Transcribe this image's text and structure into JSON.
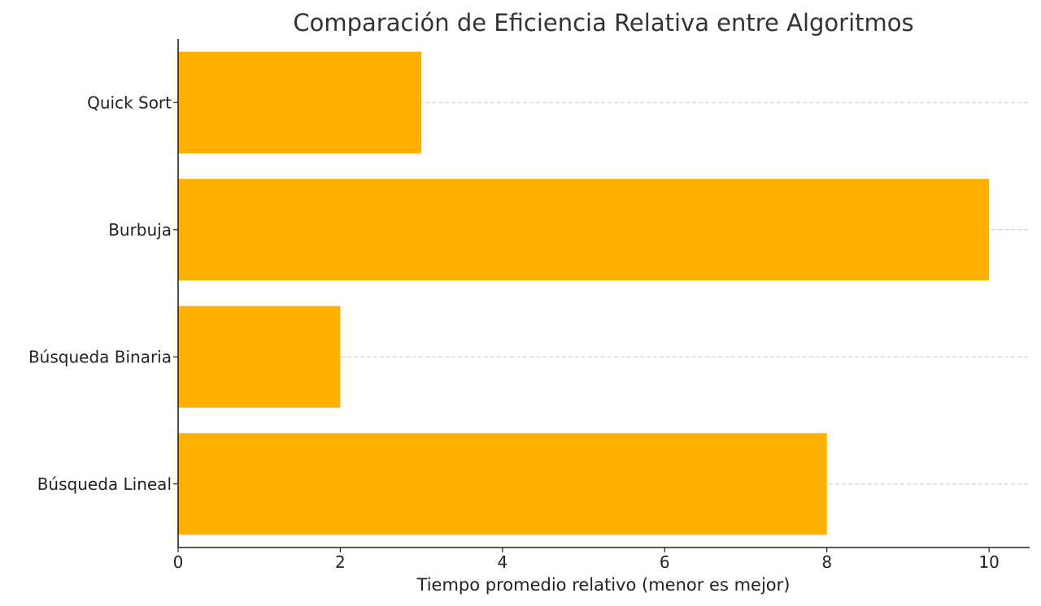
{
  "chart_data": {
    "type": "bar",
    "orientation": "horizontal",
    "title": "Comparación de Eficiencia Relativa entre Algoritmos",
    "xlabel": "Tiempo promedio relativo (menor es mejor)",
    "ylabel": "",
    "categories": [
      "Búsqueda Lineal",
      "Búsqueda Binaria",
      "Burbuja",
      "Quick Sort"
    ],
    "values": [
      8,
      2,
      10,
      3
    ],
    "xlim": [
      0,
      10.5
    ],
    "xticks": [
      0,
      2,
      4,
      6,
      8,
      10
    ],
    "bar_color": "#FFB000",
    "grid": {
      "y_dashed": true,
      "x": false
    }
  }
}
